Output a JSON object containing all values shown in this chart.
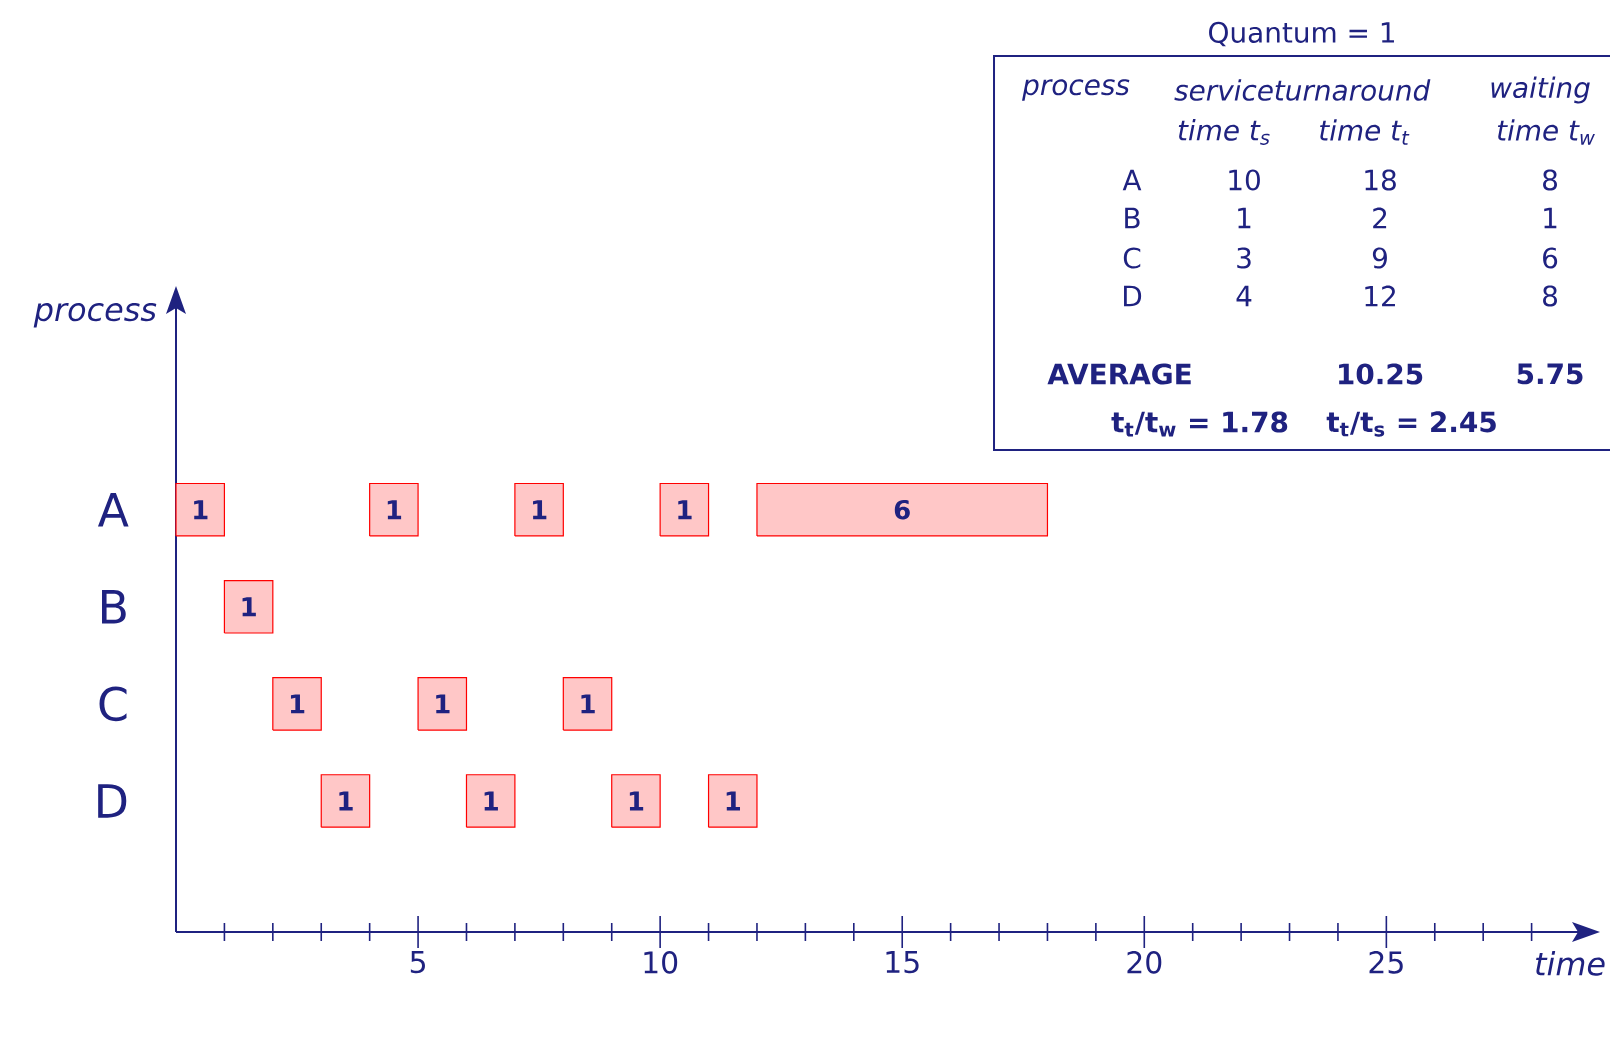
{
  "chart_data": {
    "type": "bar",
    "orientation": "horizontal",
    "xlabel": "time",
    "ylabel": "process",
    "categories": [
      "A",
      "B",
      "C",
      "D"
    ],
    "series": [
      {
        "color": "#ff0000",
        "base": [
          0,
          1,
          2,
          3
        ],
        "values": [
          1,
          1,
          1,
          1
        ]
      },
      {
        "color": "#ff0000",
        "base": [
          4,
          null,
          5,
          6
        ],
        "values": [
          1,
          null,
          1,
          1
        ]
      },
      {
        "color": "#ff0000",
        "base": [
          7,
          null,
          8,
          9
        ],
        "values": [
          1,
          null,
          1,
          1
        ]
      },
      {
        "color": "#ff0000",
        "base": [
          10,
          null,
          null,
          11
        ],
        "values": [
          1,
          null,
          null,
          1
        ]
      },
      {
        "color": "#ff0000",
        "base": [
          12,
          null,
          null,
          null
        ],
        "values": [
          6,
          null,
          null,
          null
        ]
      }
    ],
    "data_labels": true,
    "xlim": [
      0,
      29
    ],
    "xticks": [
      5,
      10,
      15,
      20,
      25
    ],
    "annotations": [
      "Quantum = 1",
      "process",
      "service",
      "turnaround",
      "waiting",
      "time t$_{s}$",
      "time t$_{t}$",
      "time t$_{w}$",
      "A",
      "10",
      "18",
      "8",
      "B",
      "1",
      "2",
      "1",
      "C",
      "3",
      "9",
      "6",
      "D",
      "4",
      "12",
      "8",
      "AVERAGE",
      "10.25",
      "5.75",
      "t$_{t}$/t$_{w}$ = 1.78",
      "t$_{t}$/t$_{s}$ = 2.45"
    ]
  }
}
